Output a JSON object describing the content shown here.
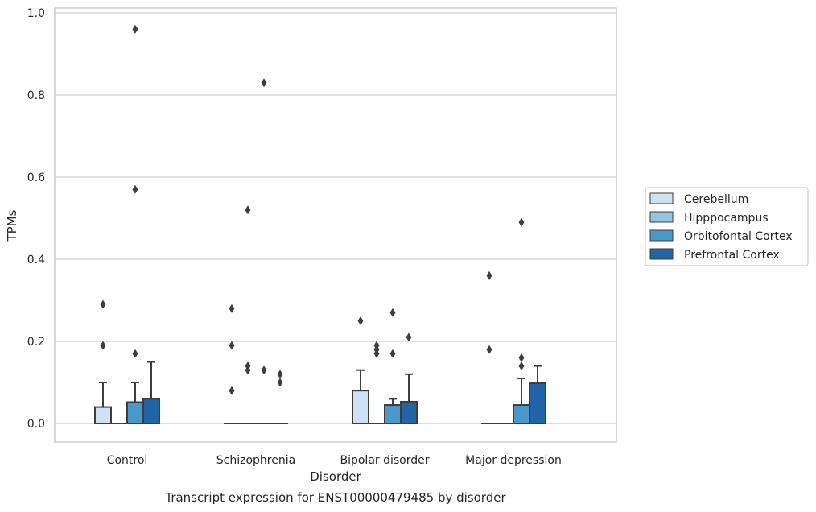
{
  "chart_data": {
    "type": "box",
    "title": "",
    "caption": "Transcript expression for ENST00000479485 by disorder",
    "xlabel": "Disorder",
    "ylabel": "TPMs",
    "ylim": [
      -0.045,
      1.012
    ],
    "yticks": [
      0.0,
      0.2,
      0.4,
      0.6,
      0.8,
      1.0
    ],
    "ytick_labels": [
      "0.0",
      "0.2",
      "0.4",
      "0.6",
      "0.8",
      "1.0"
    ],
    "grid": "horizontal",
    "legend_position": "right",
    "categories": [
      "Control",
      "Schizophrenia",
      "Bipolar disorder",
      "Major depression"
    ],
    "series": [
      {
        "name": "Cerebellum",
        "color": "#d0e1f2",
        "boxes": [
          {
            "q1": 0.0,
            "median": 0.0,
            "q3": 0.04,
            "whisker_low": 0.0,
            "whisker_high": 0.1,
            "outliers": [
              0.19,
              0.29
            ]
          },
          {
            "q1": 0.0,
            "median": 0.0,
            "q3": 0.0,
            "whisker_low": 0.0,
            "whisker_high": 0.0,
            "outliers": [
              0.08,
              0.19,
              0.28
            ]
          },
          {
            "q1": 0.0,
            "median": 0.0,
            "q3": 0.08,
            "whisker_low": 0.0,
            "whisker_high": 0.13,
            "outliers": [
              0.25
            ]
          },
          {
            "q1": 0.0,
            "median": 0.0,
            "q3": 0.0,
            "whisker_low": 0.0,
            "whisker_high": 0.0,
            "outliers": [
              0.18,
              0.36
            ]
          }
        ]
      },
      {
        "name": "Hipppocampus",
        "color": "#94c4df",
        "boxes": [
          {
            "q1": 0.0,
            "median": 0.0,
            "q3": 0.0,
            "whisker_low": 0.0,
            "whisker_high": 0.0,
            "outliers": []
          },
          {
            "q1": 0.0,
            "median": 0.0,
            "q3": 0.0,
            "whisker_low": 0.0,
            "whisker_high": 0.0,
            "outliers": [
              0.13,
              0.14,
              0.52
            ]
          },
          {
            "q1": 0.0,
            "median": 0.0,
            "q3": 0.0,
            "whisker_low": 0.0,
            "whisker_high": 0.0,
            "outliers": [
              0.17,
              0.18,
              0.19
            ]
          },
          {
            "q1": 0.0,
            "median": 0.0,
            "q3": 0.0,
            "whisker_low": 0.0,
            "whisker_high": 0.0,
            "outliers": []
          }
        ]
      },
      {
        "name": "Orbitofontal Cortex",
        "color": "#4a98c9",
        "boxes": [
          {
            "q1": 0.0,
            "median": 0.0,
            "q3": 0.052,
            "whisker_low": 0.0,
            "whisker_high": 0.1,
            "outliers": [
              0.17,
              0.57,
              0.96
            ]
          },
          {
            "q1": 0.0,
            "median": 0.0,
            "q3": 0.0,
            "whisker_low": 0.0,
            "whisker_high": 0.0,
            "outliers": [
              0.13,
              0.83
            ]
          },
          {
            "q1": 0.0,
            "median": 0.0,
            "q3": 0.045,
            "whisker_low": 0.0,
            "whisker_high": 0.06,
            "outliers": [
              0.17,
              0.27
            ]
          },
          {
            "q1": 0.0,
            "median": 0.0,
            "q3": 0.045,
            "whisker_low": 0.0,
            "whisker_high": 0.11,
            "outliers": [
              0.14,
              0.16,
              0.49
            ]
          }
        ]
      },
      {
        "name": "Prefrontal Cortex",
        "color": "#2264a8",
        "boxes": [
          {
            "q1": 0.0,
            "median": 0.0,
            "q3": 0.06,
            "whisker_low": 0.0,
            "whisker_high": 0.15,
            "outliers": []
          },
          {
            "q1": 0.0,
            "median": 0.0,
            "q3": 0.0,
            "whisker_low": 0.0,
            "whisker_high": 0.0,
            "outliers": [
              0.1,
              0.12
            ]
          },
          {
            "q1": 0.0,
            "median": 0.0,
            "q3": 0.053,
            "whisker_low": 0.0,
            "whisker_high": 0.12,
            "outliers": [
              0.21
            ]
          },
          {
            "q1": 0.0,
            "median": 0.0,
            "q3": 0.098,
            "whisker_low": 0.0,
            "whisker_high": 0.14,
            "outliers": []
          }
        ]
      }
    ]
  }
}
